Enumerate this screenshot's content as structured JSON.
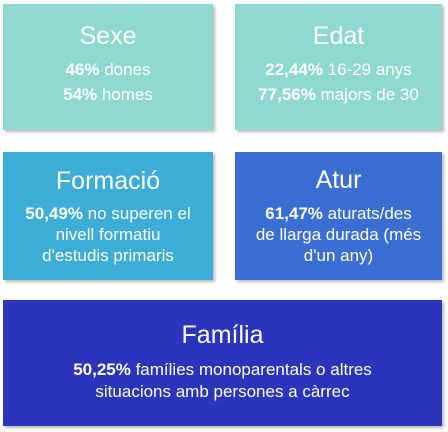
{
  "cards": {
    "sexe": {
      "title": "Sexe",
      "lines": [
        {
          "value": "46%",
          "text": " dones"
        },
        {
          "value": "54%",
          "text": " homes"
        }
      ],
      "color": "#8fd8cf"
    },
    "edat": {
      "title": "Edat",
      "lines": [
        {
          "value": "22,44%",
          "text": " 16-29 anys"
        },
        {
          "value": "77,56%",
          "text": " majors de 30"
        }
      ],
      "color": "#8fd8cf"
    },
    "formacio": {
      "title": "Formació",
      "value": "50,49%",
      "text_1": " no superen el",
      "text_2": "nivell formatiu",
      "text_3": "d'estudis primaris",
      "color": "#3dacd6"
    },
    "atur": {
      "title": "Atur",
      "value": "61,47%",
      "text_1": " aturats/des",
      "text_2": "de llarga durada (més",
      "text_3": "d'un any)",
      "color": "#3a6ed3"
    },
    "familia": {
      "title": "Família",
      "value": "50,25%",
      "text_1": " famílies monoparentals o altres",
      "text_2": "situacions amb persones a càrrec",
      "color": "#2b35bb"
    }
  }
}
